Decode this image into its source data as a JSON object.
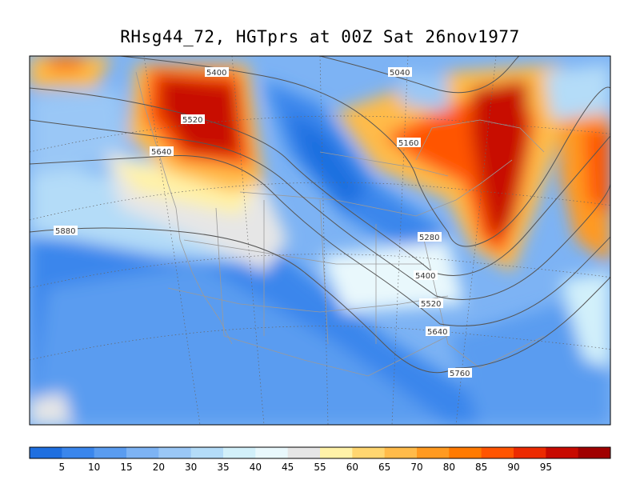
{
  "title": "RHsg44_72, HGTprs at 00Z Sat 26nov1977",
  "contours": [
    {
      "value": "5400",
      "id": "c5400w"
    },
    {
      "value": "5520",
      "id": "c5520w"
    },
    {
      "value": "5640",
      "id": "c5640w"
    },
    {
      "value": "5040",
      "id": "c5040"
    },
    {
      "value": "5160",
      "id": "c5160"
    },
    {
      "value": "5280",
      "id": "c5280"
    },
    {
      "value": "5400",
      "id": "c5400e"
    },
    {
      "value": "5520",
      "id": "c5520e"
    },
    {
      "value": "5640",
      "id": "c5640e"
    },
    {
      "value": "5760",
      "id": "c5760"
    },
    {
      "value": "5880",
      "id": "c5880"
    }
  ],
  "colorbar": {
    "colors": [
      "#1f6fe0",
      "#3a86ec",
      "#5a9cf0",
      "#7db3f4",
      "#9ac7f6",
      "#b4dcf8",
      "#d2f0fa",
      "#e9f8fc",
      "#e6e6e6",
      "#fff2a8",
      "#ffd670",
      "#ffbb4a",
      "#ff9a20",
      "#ff7a00",
      "#ff5400",
      "#ec2a00",
      "#c80a00",
      "#a00000"
    ],
    "labels": [
      "5",
      "10",
      "15",
      "20",
      "30",
      "35",
      "40",
      "45",
      "55",
      "60",
      "65",
      "70",
      "80",
      "85",
      "90",
      "95"
    ]
  }
}
